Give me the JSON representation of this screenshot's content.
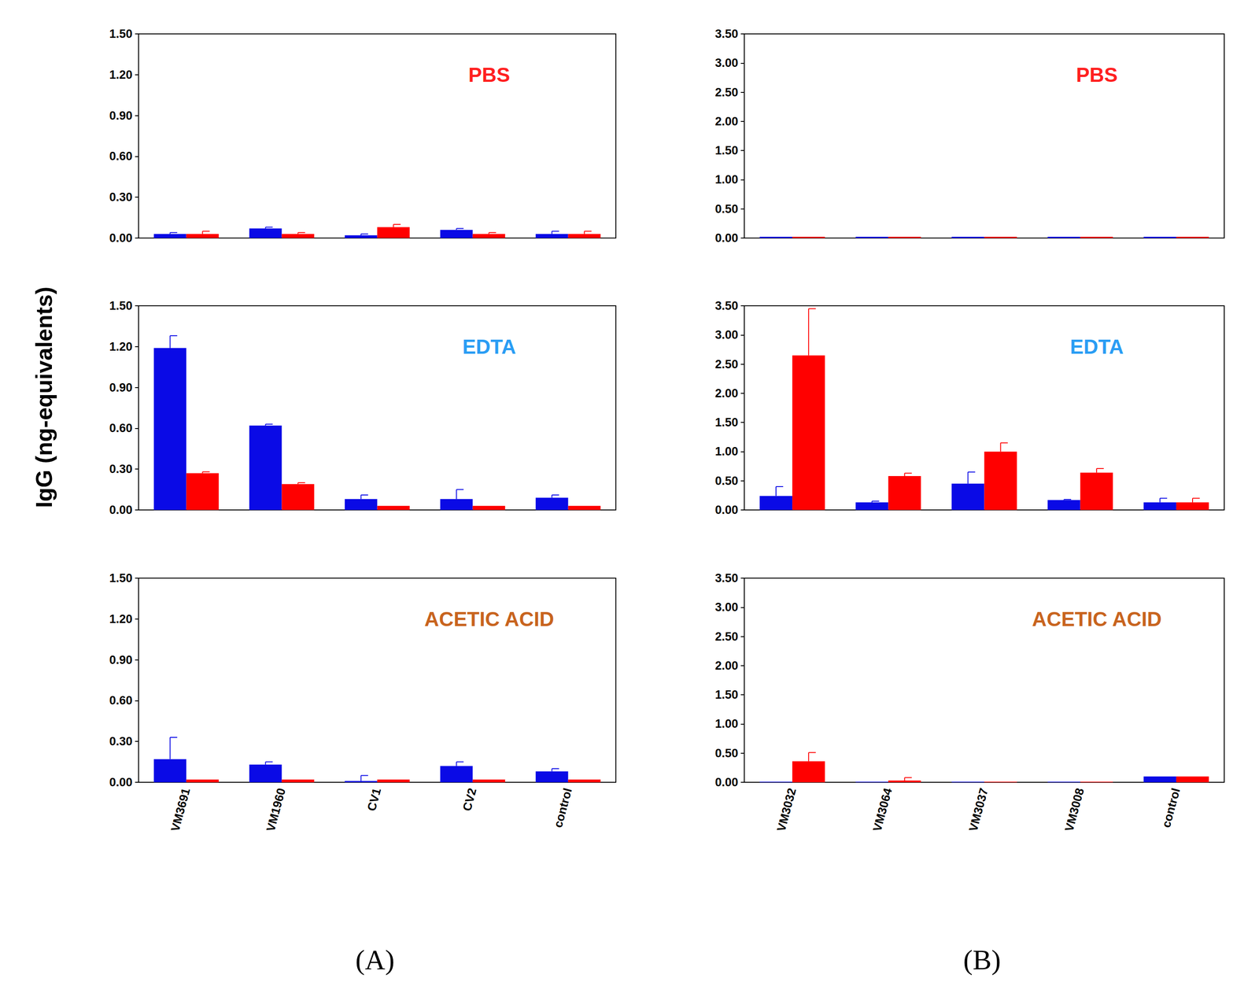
{
  "y_label": "IgG (ng-equivalents)",
  "panel_labels": [
    "(A)",
    "(B)"
  ],
  "chart_data": [
    {
      "type": "bar",
      "title": "PBS",
      "grid": false,
      "tick_labels": "y",
      "categories": [
        "VM3691",
        "VM1960",
        "CV1",
        "CV2",
        "control"
      ],
      "ylim": [
        0,
        1.5
      ],
      "yticks": [
        {
          "value": 0,
          "label": "0.00"
        },
        {
          "value": 0.3,
          "label": "0.30"
        },
        {
          "value": 0.6,
          "label": "0.60"
        },
        {
          "value": 0.9,
          "label": "0.90"
        },
        {
          "value": 1.2,
          "label": "1.20"
        },
        {
          "value": 1.5,
          "label": "1.50"
        }
      ],
      "series": [
        {
          "color": "#0a0ae6",
          "values": [
            0.03,
            0.07,
            0.02,
            0.06,
            0.03
          ],
          "errors": [
            0.01,
            0.01,
            0.01,
            0.01,
            0.02
          ]
        },
        {
          "color": "#ff0000",
          "values": [
            0.03,
            0.03,
            0.08,
            0.03,
            0.03
          ],
          "errors": [
            0.02,
            0.01,
            0.02,
            0.01,
            0.02
          ]
        }
      ]
    },
    {
      "type": "bar",
      "title": "EDTA",
      "grid": false,
      "tick_labels": "y",
      "categories": [
        "VM3691",
        "VM1960",
        "CV1",
        "CV2",
        "control"
      ],
      "ylim": [
        0,
        1.5
      ],
      "yticks": [
        {
          "value": 0,
          "label": "0.00"
        },
        {
          "value": 0.3,
          "label": "0.30"
        },
        {
          "value": 0.6,
          "label": "0.60"
        },
        {
          "value": 0.9,
          "label": "0.90"
        },
        {
          "value": 1.2,
          "label": "1.20"
        },
        {
          "value": 1.5,
          "label": "1.50"
        }
      ],
      "series": [
        {
          "color": "#0a0ae6",
          "values": [
            1.19,
            0.62,
            0.08,
            0.08,
            0.09
          ],
          "errors": [
            0.09,
            0.01,
            0.03,
            0.07,
            0.02
          ]
        },
        {
          "color": "#ff0000",
          "values": [
            0.27,
            0.19,
            0.03,
            0.03,
            0.03
          ],
          "errors": [
            0.01,
            0.01,
            0.0,
            0.0,
            0.0
          ]
        }
      ]
    },
    {
      "type": "bar",
      "title": "ACETIC ACID",
      "grid": false,
      "categories": [
        "VM3691",
        "VM1960",
        "CV1",
        "CV2",
        "control"
      ],
      "ylim": [
        0,
        1.5
      ],
      "yticks": [
        {
          "value": 0,
          "label": "0.00"
        },
        {
          "value": 0.3,
          "label": "0.30"
        },
        {
          "value": 0.6,
          "label": "0.60"
        },
        {
          "value": 0.9,
          "label": "0.90"
        },
        {
          "value": 1.2,
          "label": "1.20"
        },
        {
          "value": 1.5,
          "label": "1.50"
        }
      ],
      "series": [
        {
          "color": "#0a0ae6",
          "values": [
            0.17,
            0.13,
            0.01,
            0.12,
            0.08
          ],
          "errors": [
            0.16,
            0.02,
            0.04,
            0.03,
            0.02
          ]
        },
        {
          "color": "#ff0000",
          "values": [
            0.02,
            0.02,
            0.02,
            0.02,
            0.02
          ],
          "errors": [
            0.0,
            0.0,
            0.0,
            0.0,
            0.0
          ]
        }
      ]
    },
    {
      "type": "bar",
      "title": "PBS",
      "grid": false,
      "tick_labels": "y",
      "categories": [
        "VM3032",
        "VM3064",
        "VM3037",
        "VM3008",
        "control"
      ],
      "ylim": [
        0,
        3.5
      ],
      "yticks": [
        {
          "value": 0,
          "label": "0.00"
        },
        {
          "value": 0.5,
          "label": "0.50"
        },
        {
          "value": 1,
          "label": "1.00"
        },
        {
          "value": 1.5,
          "label": "1.50"
        },
        {
          "value": 2,
          "label": "2.00"
        },
        {
          "value": 2.5,
          "label": "2.50"
        },
        {
          "value": 3,
          "label": "3.00"
        },
        {
          "value": 3.5,
          "label": "3.50"
        }
      ],
      "series": [
        {
          "color": "#0a0ae6",
          "values": [
            0.02,
            0.02,
            0.02,
            0.02,
            0.02
          ],
          "errors": [
            0.0,
            0.0,
            0.0,
            0.0,
            0.0
          ]
        },
        {
          "color": "#ff0000",
          "values": [
            0.02,
            0.02,
            0.02,
            0.02,
            0.02
          ],
          "errors": [
            0.0,
            0.0,
            0.0,
            0.0,
            0.0
          ]
        }
      ]
    },
    {
      "type": "bar",
      "title": "EDTA",
      "grid": false,
      "tick_labels": "y",
      "categories": [
        "VM3032",
        "VM3064",
        "VM3037",
        "VM3008",
        "control"
      ],
      "ylim": [
        0,
        3.5
      ],
      "yticks": [
        {
          "value": 0,
          "label": "0.00"
        },
        {
          "value": 0.5,
          "label": "0.50"
        },
        {
          "value": 1,
          "label": "1.00"
        },
        {
          "value": 1.5,
          "label": "1.50"
        },
        {
          "value": 2,
          "label": "2.00"
        },
        {
          "value": 2.5,
          "label": "2.50"
        },
        {
          "value": 3,
          "label": "3.00"
        },
        {
          "value": 3.5,
          "label": "3.50"
        }
      ],
      "series": [
        {
          "color": "#0a0ae6",
          "values": [
            0.24,
            0.13,
            0.45,
            0.17,
            0.13
          ],
          "errors": [
            0.16,
            0.02,
            0.2,
            0.01,
            0.07
          ]
        },
        {
          "color": "#ff0000",
          "values": [
            2.65,
            0.58,
            1.0,
            0.64,
            0.13
          ],
          "errors": [
            0.8,
            0.05,
            0.15,
            0.07,
            0.07
          ]
        }
      ]
    },
    {
      "type": "bar",
      "title": "ACETIC ACID",
      "grid": false,
      "categories": [
        "VM3032",
        "VM3064",
        "VM3037",
        "VM3008",
        "control"
      ],
      "ylim": [
        0,
        3.5
      ],
      "yticks": [
        {
          "value": 0,
          "label": "0.00"
        },
        {
          "value": 0.5,
          "label": "0.50"
        },
        {
          "value": 1,
          "label": "1.00"
        },
        {
          "value": 1.5,
          "label": "1.50"
        },
        {
          "value": 2,
          "label": "2.00"
        },
        {
          "value": 2.5,
          "label": "2.50"
        },
        {
          "value": 3,
          "label": "3.00"
        },
        {
          "value": 3.5,
          "label": "3.50"
        }
      ],
      "series": [
        {
          "color": "#0a0ae6",
          "values": [
            0.01,
            0.01,
            0.01,
            0.01,
            0.1
          ],
          "errors": [
            0.0,
            0.0,
            0.0,
            0.0,
            0.0
          ]
        },
        {
          "color": "#ff0000",
          "values": [
            0.36,
            0.03,
            0.01,
            0.01,
            0.1
          ],
          "errors": [
            0.15,
            0.05,
            0.0,
            0.0,
            0.0
          ]
        }
      ]
    }
  ]
}
